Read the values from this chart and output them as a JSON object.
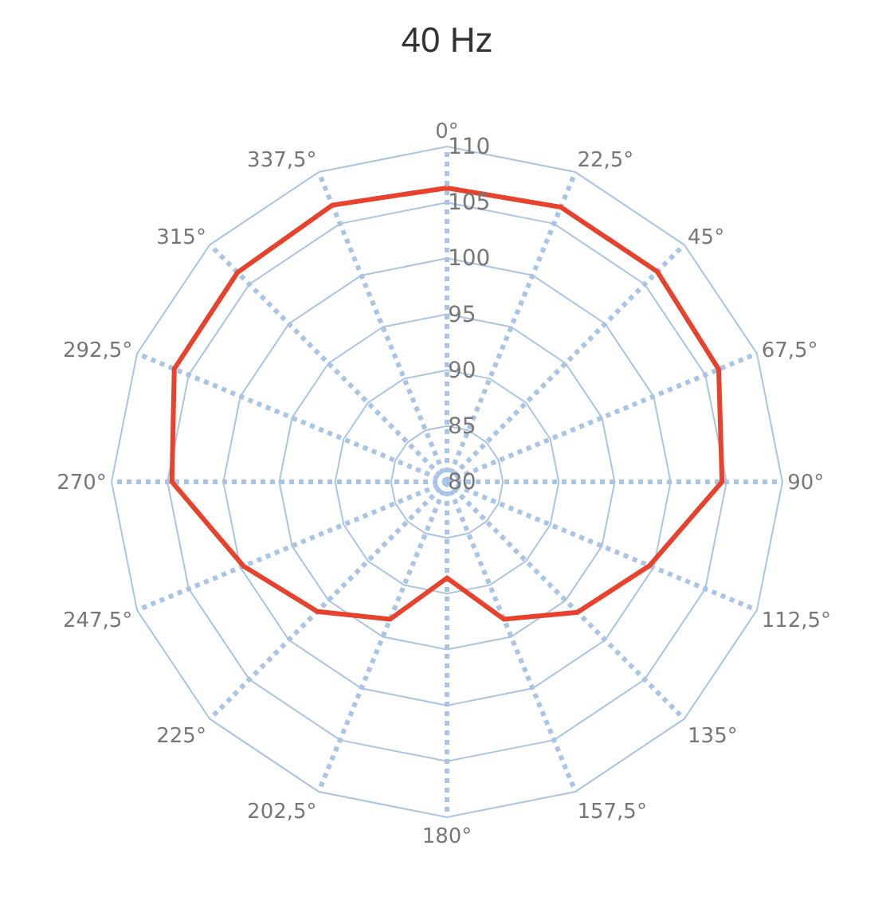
{
  "chart_data": {
    "type": "radar",
    "title": "40 Hz",
    "categories": [
      "0°",
      "22,5°",
      "45°",
      "67,5°",
      "90°",
      "112,5°",
      "135°",
      "157,5°",
      "180°",
      "202,5°",
      "225°",
      "247,5°",
      "270°",
      "292,5°",
      "315°",
      "337,5°"
    ],
    "series": [
      {
        "color": "#e8412c",
        "values": [
          106.3,
          106.6,
          106.6,
          106.3,
          104.6,
          99.6,
          96.5,
          93.3,
          88.6,
          93.3,
          96.4,
          99.7,
          104.6,
          106.4,
          106.5,
          106.8
        ]
      }
    ],
    "ylim": [
      80,
      110
    ],
    "yticks": [
      80,
      85,
      90,
      95,
      100,
      105,
      110
    ],
    "grid": true,
    "marker": "none",
    "line_style": "solid"
  }
}
